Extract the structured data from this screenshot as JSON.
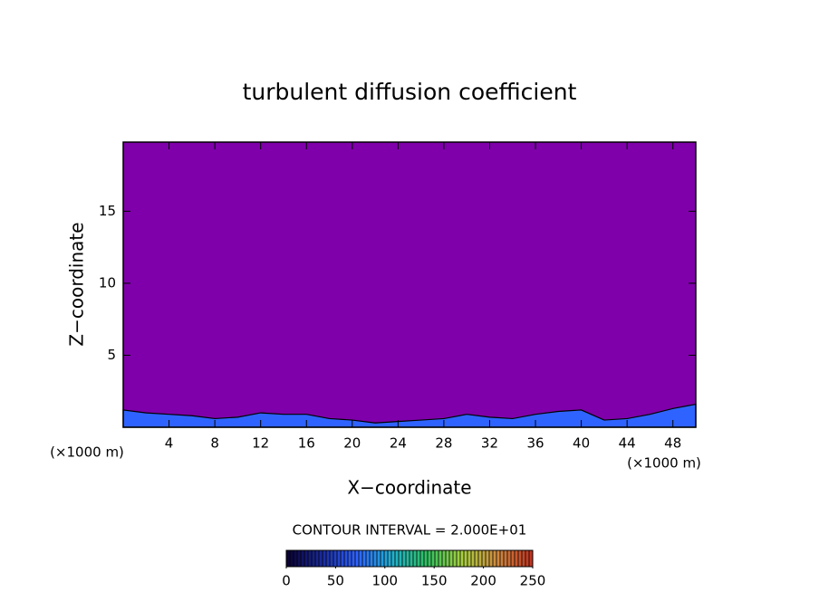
{
  "chart_data": {
    "type": "contour",
    "title": "turbulent diffusion coefficient",
    "xlabel": "X−coordinate",
    "ylabel": "Z−coordinate",
    "x_unit": "(×1000 m)",
    "xlim": [
      0,
      50
    ],
    "ylim": [
      0,
      19.8
    ],
    "xticks": [
      4,
      8,
      12,
      16,
      20,
      24,
      28,
      32,
      36,
      40,
      44,
      48
    ],
    "yticks": [
      5,
      10,
      15
    ],
    "background_color": "#7f00aa",
    "layer": {
      "color": "#2f63ff",
      "x": [
        0,
        2,
        4,
        6,
        8,
        10,
        12,
        14,
        16,
        18,
        20,
        22,
        24,
        26,
        28,
        30,
        32,
        34,
        36,
        38,
        40,
        42,
        44,
        46,
        48,
        50
      ],
      "values": [
        1.2,
        1.0,
        0.9,
        0.8,
        0.6,
        0.7,
        1.0,
        0.9,
        0.9,
        0.6,
        0.5,
        0.3,
        0.4,
        0.5,
        0.6,
        0.9,
        0.7,
        0.6,
        0.9,
        1.1,
        1.2,
        0.5,
        0.6,
        0.9,
        1.3,
        1.6
      ]
    },
    "colorbar": {
      "label": "CONTOUR INTERVAL = 2.000E+01",
      "lim": [
        0,
        250
      ],
      "ticks": [
        0,
        50,
        100,
        150,
        200,
        250
      ],
      "colormap": [
        "#0a0030",
        "#1a2a9a",
        "#2f63ff",
        "#20b0d0",
        "#30c060",
        "#a8d040",
        "#d08a40",
        "#c03020"
      ]
    }
  }
}
